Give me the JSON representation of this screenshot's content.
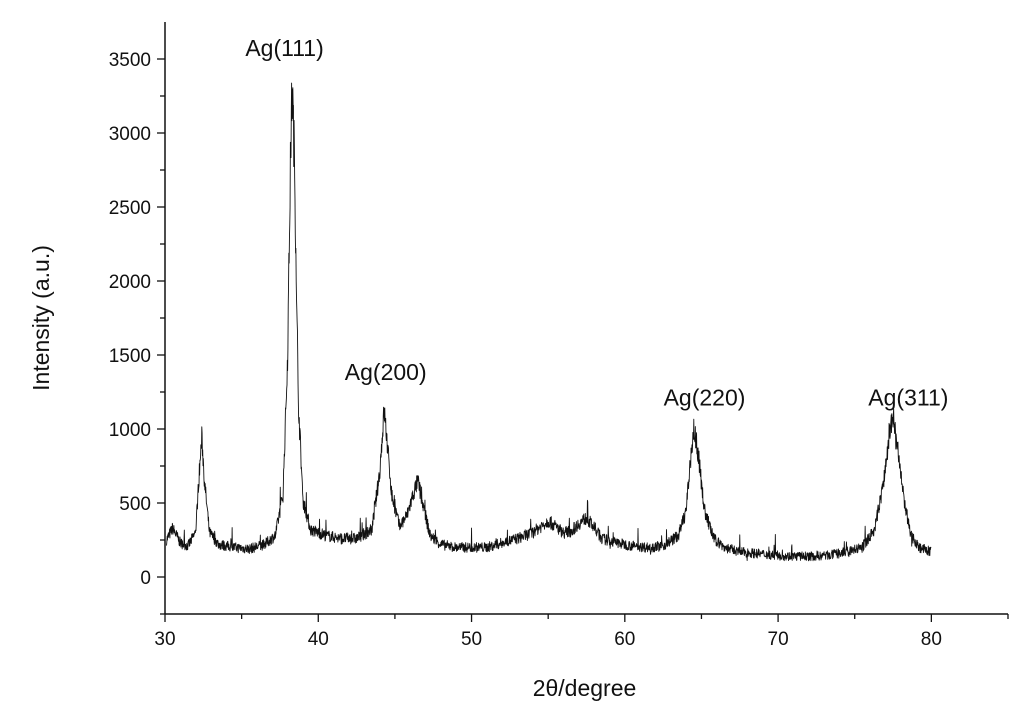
{
  "chart_data": {
    "type": "line",
    "title": "",
    "xlabel": "2θ/degree",
    "ylabel": "Intensity (a.u.)",
    "xlim": [
      30,
      85
    ],
    "ylim": [
      -250,
      3750
    ],
    "x_ticks": [
      30,
      40,
      50,
      60,
      70,
      80
    ],
    "y_ticks": [
      0,
      500,
      1000,
      1500,
      2000,
      2500,
      3000,
      3500
    ],
    "grid": false,
    "legend": "none",
    "line_color": "#111111",
    "series": [
      {
        "x": [
          30.1,
          30.5,
          31.0,
          31.5,
          32.0,
          32.2,
          32.4,
          32.6,
          32.9,
          33.5,
          34.5,
          35.5,
          36.5,
          37.2,
          37.7,
          38.0,
          38.2,
          38.3,
          38.45,
          38.7,
          39.0,
          39.5,
          40.5,
          41.5,
          42.5,
          43.5,
          44.0,
          44.3,
          44.5,
          44.8,
          45.3,
          45.8,
          46.2,
          46.5,
          46.8,
          47.3,
          48.0,
          49.0,
          50.0,
          51.0,
          52.0,
          53.0,
          54.0,
          54.5,
          55.0,
          55.5,
          56.0,
          56.5,
          57.0,
          57.5,
          58.0,
          58.5,
          59.5,
          60.5,
          61.5,
          62.5,
          63.5,
          64.0,
          64.3,
          64.5,
          64.8,
          65.2,
          65.8,
          66.5,
          67.5,
          68.5,
          69.5,
          70.5,
          71.5,
          72.5,
          73.5,
          74.5,
          75.5,
          76.3,
          76.9,
          77.3,
          77.5,
          77.7,
          78.1,
          78.6,
          79.2,
          80.0
        ],
        "y": [
          250,
          330,
          230,
          210,
          300,
          650,
          940,
          620,
          300,
          220,
          200,
          190,
          220,
          280,
          560,
          1500,
          2900,
          3320,
          2800,
          1200,
          520,
          320,
          280,
          260,
          260,
          320,
          700,
          1130,
          900,
          550,
          340,
          420,
          560,
          650,
          500,
          280,
          220,
          200,
          200,
          200,
          230,
          260,
          300,
          340,
          380,
          340,
          300,
          310,
          360,
          400,
          330,
          260,
          230,
          210,
          200,
          210,
          280,
          450,
          800,
          1000,
          820,
          450,
          260,
          200,
          170,
          160,
          150,
          140,
          140,
          140,
          150,
          170,
          200,
          320,
          650,
          990,
          1080,
          950,
          600,
          300,
          200,
          170
        ]
      }
    ],
    "annotations": [
      {
        "text": "Ag(111)",
        "x": 37.8,
        "y": 3520
      },
      {
        "text": "Ag(200)",
        "x": 44.4,
        "y": 1330
      },
      {
        "text": "Ag(220)",
        "x": 65.2,
        "y": 1160
      },
      {
        "text": "Ag(311)",
        "x": 78.5,
        "y": 1160
      }
    ]
  }
}
